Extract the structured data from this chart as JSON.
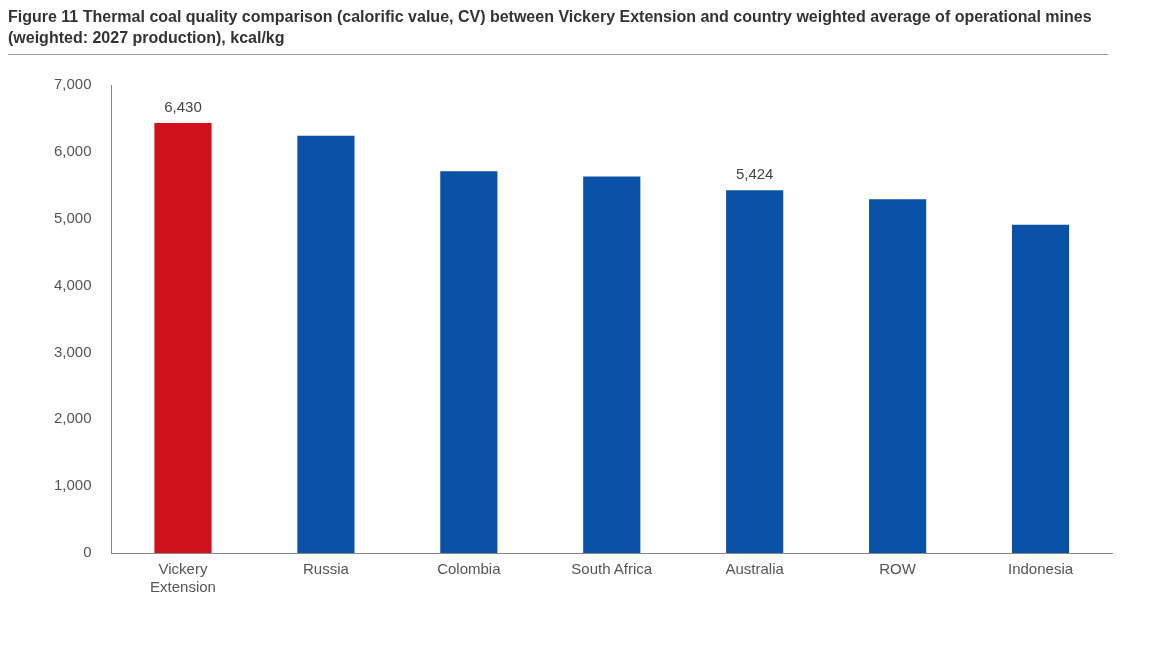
{
  "chart_data": {
    "type": "bar",
    "title": "Figure 11 Thermal coal quality comparison (calorific value, CV) between Vickery Extension and country weighted average of operational mines (weighted: 2027 production), kcal/kg",
    "categories": [
      [
        "Vickery",
        "Extension"
      ],
      "Russia",
      "Colombia",
      "South Africa",
      "Australia",
      "ROW",
      "Indonesia"
    ],
    "values": [
      6430,
      6240,
      5710,
      5630,
      5424,
      5290,
      4910
    ],
    "colors": [
      "#d0101a",
      "#0a52a8",
      "#0a52a8",
      "#0a52a8",
      "#0a52a8",
      "#0a52a8",
      "#0a52a8"
    ],
    "value_labels": [
      "6,430",
      null,
      null,
      null,
      "5,424",
      null,
      null
    ],
    "ylim": [
      0,
      7000
    ],
    "yticks": [
      {
        "value": 0,
        "label": "0"
      },
      {
        "value": 1000,
        "label": "1,000"
      },
      {
        "value": 2000,
        "label": "2,000"
      },
      {
        "value": 3000,
        "label": "3,000"
      },
      {
        "value": 4000,
        "label": "4,000"
      },
      {
        "value": 5000,
        "label": "5,000"
      },
      {
        "value": 6000,
        "label": "6,000"
      },
      {
        "value": 7000,
        "label": "7,000"
      }
    ],
    "grid": false
  }
}
